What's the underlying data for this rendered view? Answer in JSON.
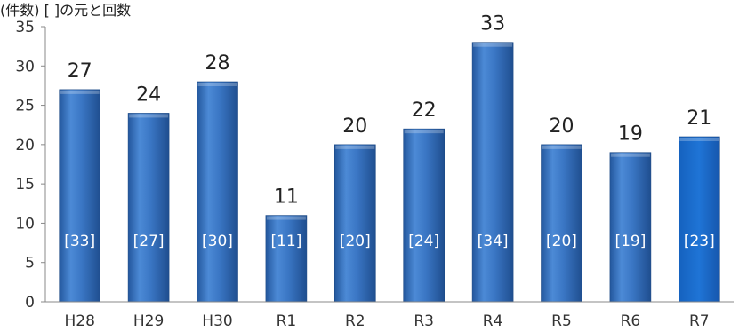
{
  "chart_data": {
    "type": "bar",
    "title": "(件数) [ ]の元と回数",
    "categories": [
      "H28",
      "H29",
      "H30",
      "R1",
      "R2",
      "R3",
      "R4",
      "R5",
      "R6",
      "R7"
    ],
    "values": [
      27,
      24,
      28,
      11,
      20,
      22,
      33,
      20,
      19,
      21
    ],
    "bracket_labels": [
      "[33]",
      "[27]",
      "[30]",
      "[11]",
      "[20]",
      "[24]",
      "[34]",
      "[20]",
      "[19]",
      "[23]"
    ],
    "ylim": [
      0,
      35
    ],
    "yticks": [
      0,
      5,
      10,
      15,
      20,
      25,
      30,
      35
    ],
    "grid": false,
    "legend": "none",
    "colors": {
      "bar": "#3a76c4",
      "bar_dark": "#1f4e8f",
      "bar_last": "#1f6fc9",
      "axis": "#888888"
    }
  }
}
